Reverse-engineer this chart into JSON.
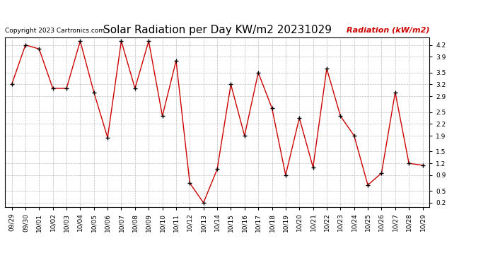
{
  "title": "Solar Radiation per Day KW/m2 20231029",
  "copyright_text": "Copyright 2023 Cartronics.com",
  "legend_label": "Radiation (kW/m2)",
  "dates": [
    "09/29",
    "09/30",
    "10/01",
    "10/02",
    "10/03",
    "10/04",
    "10/05",
    "10/06",
    "10/07",
    "10/08",
    "10/09",
    "10/10",
    "10/11",
    "10/12",
    "10/13",
    "10/14",
    "10/15",
    "10/16",
    "10/17",
    "10/18",
    "10/19",
    "10/20",
    "10/21",
    "10/22",
    "10/23",
    "10/24",
    "10/25",
    "10/26",
    "10/27",
    "10/28",
    "10/29"
  ],
  "values": [
    3.2,
    4.2,
    4.1,
    3.1,
    3.1,
    4.3,
    3.0,
    1.85,
    4.3,
    3.1,
    4.3,
    2.4,
    3.8,
    0.7,
    0.2,
    1.05,
    3.2,
    1.9,
    3.5,
    2.6,
    0.9,
    2.35,
    1.1,
    3.6,
    2.4,
    1.9,
    0.65,
    0.95,
    3.0,
    1.2,
    1.15
  ],
  "line_color": "#cc0000",
  "marker": "+",
  "marker_color": "#000000",
  "ylim": [
    0.1,
    4.4
  ],
  "yticks": [
    0.2,
    0.5,
    0.9,
    1.2,
    1.5,
    1.9,
    2.2,
    2.5,
    2.9,
    3.2,
    3.5,
    3.9,
    4.2
  ],
  "grid_color": "#bbbbbb",
  "background_color": "#ffffff",
  "title_fontsize": 11,
  "copyright_fontsize": 6.5,
  "legend_fontsize": 8,
  "tick_fontsize": 6.5
}
